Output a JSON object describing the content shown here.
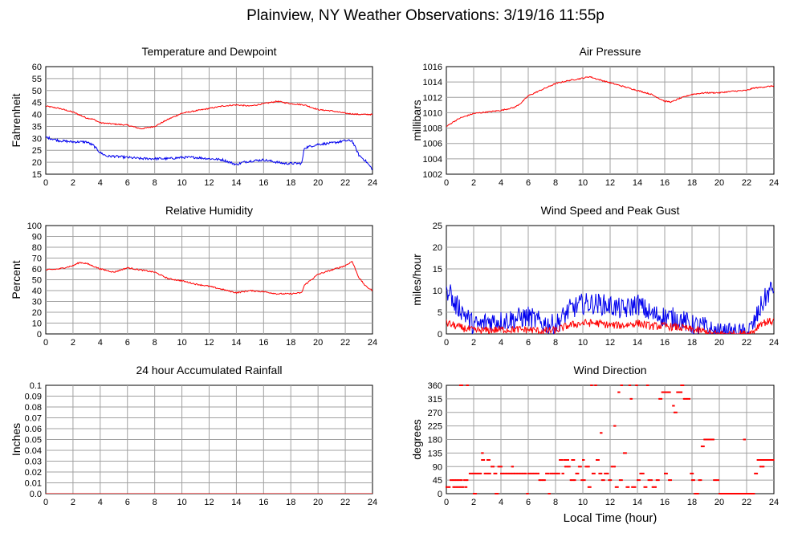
{
  "page": {
    "title": "Plainview, NY Weather Observations: 3/19/16 11:55p",
    "xaxis_label": "Local Time (hour)"
  },
  "colors": {
    "red": "#ff0000",
    "blue": "#0000ee",
    "grid": "#a0a0a0"
  },
  "chart_data": [
    {
      "id": "temp",
      "type": "line",
      "title": "Temperature and Dewpoint",
      "ylabel": "Fahrenheit",
      "xlim": [
        0,
        24
      ],
      "ylim": [
        15,
        60
      ],
      "xticks": [
        0,
        2,
        4,
        6,
        8,
        10,
        12,
        14,
        16,
        18,
        20,
        22,
        24
      ],
      "yticks": [
        15,
        20,
        25,
        30,
        35,
        40,
        45,
        50,
        55,
        60
      ],
      "grid": true,
      "series": [
        {
          "color": "#ff0000",
          "noise": 0.25,
          "x": [
            0,
            1,
            2,
            3,
            3.5,
            4,
            5,
            6,
            7,
            7.5,
            8,
            9,
            10,
            11,
            12,
            13,
            14,
            15,
            16,
            17,
            17.5,
            18,
            19,
            20,
            21,
            22,
            23,
            24
          ],
          "y": [
            43.5,
            42.5,
            41,
            38.5,
            38,
            36.5,
            36,
            35.5,
            34,
            34.5,
            35,
            38,
            40.5,
            41.5,
            42.5,
            43.5,
            44,
            43.5,
            44.5,
            45.5,
            45,
            44.5,
            44,
            42,
            41.5,
            40.5,
            40,
            40
          ]
        },
        {
          "color": "#0000ee",
          "noise": 0.5,
          "x": [
            0,
            1,
            2,
            3,
            3.5,
            4,
            4.5,
            5,
            6,
            7,
            8,
            9,
            10,
            11,
            12,
            13,
            13.5,
            14,
            14.5,
            15,
            16,
            17,
            17.5,
            18,
            18.8,
            19,
            20,
            21,
            22,
            22.5,
            23,
            23.5,
            24
          ],
          "y": [
            30.5,
            29,
            28.5,
            28.5,
            27,
            24,
            22.5,
            22.5,
            22,
            21.5,
            21.5,
            21.5,
            22,
            22,
            21.5,
            21,
            20,
            19,
            20,
            20.5,
            21,
            20,
            19.5,
            19.5,
            19.5,
            26,
            27.5,
            28,
            29,
            29,
            23,
            20.5,
            17
          ]
        }
      ]
    },
    {
      "id": "pressure",
      "type": "line",
      "title": "Air Pressure",
      "ylabel": "millibars",
      "xlim": [
        0,
        24
      ],
      "ylim": [
        1002,
        1016
      ],
      "xticks": [
        0,
        2,
        4,
        6,
        8,
        10,
        12,
        14,
        16,
        18,
        20,
        22,
        24
      ],
      "yticks": [
        1002,
        1004,
        1006,
        1008,
        1010,
        1012,
        1014,
        1016
      ],
      "grid": true,
      "series": [
        {
          "color": "#ff0000",
          "noise": 0.08,
          "x": [
            0,
            0.5,
            1,
            2,
            3,
            4,
            5,
            5.5,
            6,
            7,
            8,
            9,
            10,
            10.5,
            11,
            12,
            13,
            14,
            15,
            16,
            16.5,
            17,
            18,
            19,
            20,
            21,
            22,
            22.5,
            23,
            24
          ],
          "y": [
            1008.2,
            1008.8,
            1009.3,
            1009.9,
            1010.1,
            1010.3,
            1010.7,
            1011.3,
            1012.2,
            1013.0,
            1013.8,
            1014.2,
            1014.5,
            1014.7,
            1014.4,
            1013.9,
            1013.4,
            1012.9,
            1012.4,
            1011.5,
            1011.4,
            1011.8,
            1012.4,
            1012.6,
            1012.6,
            1012.8,
            1012.9,
            1013.2,
            1013.3,
            1013.5
          ]
        }
      ]
    },
    {
      "id": "humidity",
      "type": "line",
      "title": "Relative Humidity",
      "ylabel": "Percent",
      "xlim": [
        0,
        24
      ],
      "ylim": [
        0,
        100
      ],
      "xticks": [
        0,
        2,
        4,
        6,
        8,
        10,
        12,
        14,
        16,
        18,
        20,
        22,
        24
      ],
      "yticks": [
        0,
        10,
        20,
        30,
        40,
        50,
        60,
        70,
        80,
        90,
        100
      ],
      "grid": true,
      "series": [
        {
          "color": "#ff0000",
          "noise": 0.6,
          "x": [
            0,
            1,
            2,
            2.5,
            3,
            4,
            5,
            6,
            7,
            8,
            9,
            10,
            11,
            12,
            13,
            14,
            15,
            16,
            17,
            18,
            18.8,
            19,
            20,
            21,
            22,
            22.5,
            23,
            23.5,
            24
          ],
          "y": [
            59,
            60,
            63,
            66,
            65,
            60,
            57,
            61,
            59,
            57,
            51,
            49,
            46,
            44,
            41,
            38,
            40,
            39,
            37,
            37,
            38,
            45,
            55,
            59,
            63,
            67,
            52,
            44,
            40
          ]
        }
      ]
    },
    {
      "id": "wind",
      "type": "line",
      "title": "Wind Speed and Peak Gust",
      "ylabel": "miles/hour",
      "xlim": [
        0,
        24
      ],
      "ylim": [
        0,
        25
      ],
      "xticks": [
        0,
        2,
        4,
        6,
        8,
        10,
        12,
        14,
        16,
        18,
        20,
        22,
        24
      ],
      "yticks": [
        0,
        5,
        10,
        15,
        20,
        25
      ],
      "grid": true,
      "series": [
        {
          "color": "#0000ee",
          "noise": 2.5,
          "x": [
            0,
            0.2,
            0.5,
            1,
            1.5,
            2,
            2.5,
            3,
            4,
            5,
            6,
            7,
            8,
            9,
            10,
            11,
            12,
            13,
            14,
            15,
            16,
            17,
            18,
            19,
            19.5,
            20,
            21,
            22,
            22.5,
            23,
            23.5,
            24
          ],
          "y": [
            9,
            11,
            7,
            6,
            4,
            2,
            2,
            3,
            3,
            3.5,
            4,
            2.5,
            2,
            5.5,
            7,
            7,
            6.5,
            5.5,
            7,
            4.5,
            4,
            3.5,
            2,
            1.5,
            0.5,
            0,
            0,
            0,
            2,
            6,
            9,
            11
          ]
        },
        {
          "color": "#ff0000",
          "noise": 0.9,
          "x": [
            0,
            0.5,
            1,
            2,
            3,
            4,
            5,
            6,
            7,
            8,
            9,
            10,
            11,
            12,
            13,
            14,
            15,
            16,
            17,
            18,
            19,
            19.5,
            20,
            22,
            22.5,
            23,
            24
          ],
          "y": [
            2.5,
            2,
            1.5,
            0.8,
            0.8,
            1,
            1,
            1,
            0.6,
            0.8,
            2,
            2.5,
            2.5,
            2,
            2,
            2.5,
            1.8,
            1.8,
            1.5,
            1,
            0.5,
            0,
            0,
            0,
            0.5,
            2.5,
            3
          ]
        }
      ]
    },
    {
      "id": "rain",
      "type": "line",
      "title": "24 hour Accumulated Rainfall",
      "ylabel": "Inches",
      "xlim": [
        0,
        24
      ],
      "ylim": [
        0,
        0.1
      ],
      "xticks": [
        0,
        2,
        4,
        6,
        8,
        10,
        12,
        14,
        16,
        18,
        20,
        22,
        24
      ],
      "yticks": [
        0,
        0.01,
        0.02,
        0.03,
        0.04,
        0.05,
        0.06,
        0.07,
        0.08,
        0.09,
        0.1
      ],
      "ytick_labels": [
        "0.0",
        "0.01",
        "0.02",
        "0.03",
        "0.04",
        "0.05",
        "0.06",
        "0.07",
        "0.08",
        "0.09",
        "0.1"
      ],
      "grid": true,
      "series": [
        {
          "color": "#ff0000",
          "noise": 0,
          "x": [
            0,
            24
          ],
          "y": [
            0,
            0
          ]
        }
      ]
    },
    {
      "id": "direction",
      "type": "scatter",
      "title": "Wind Direction",
      "ylabel": "degrees",
      "xlim": [
        0,
        24
      ],
      "ylim": [
        0,
        360
      ],
      "xticks": [
        0,
        2,
        4,
        6,
        8,
        10,
        12,
        14,
        16,
        18,
        20,
        22,
        24
      ],
      "yticks": [
        0,
        45,
        90,
        135,
        180,
        225,
        270,
        315,
        360
      ],
      "grid": true,
      "series": [
        {
          "color": "#ff0000",
          "segments": [
            [
              0.0,
              0.3,
              22
            ],
            [
              0.3,
              1.2,
              45
            ],
            [
              0.5,
              1.3,
              22
            ],
            [
              1.0,
              1.2,
              360
            ],
            [
              1.3,
              1.6,
              45
            ],
            [
              1.4,
              1.5,
              22
            ],
            [
              1.5,
              1.6,
              360
            ],
            [
              1.7,
              2.2,
              67
            ],
            [
              2.0,
              2.2,
              0
            ],
            [
              2.2,
              2.6,
              67
            ],
            [
              2.6,
              2.8,
              112
            ],
            [
              2.6,
              2.7,
              135
            ],
            [
              2.8,
              3.3,
              67
            ],
            [
              3.0,
              3.2,
              112
            ],
            [
              3.3,
              3.5,
              90
            ],
            [
              3.5,
              3.7,
              67
            ],
            [
              3.6,
              3.8,
              0
            ],
            [
              3.8,
              4.1,
              90
            ],
            [
              4.0,
              4.5,
              67
            ],
            [
              4.5,
              5.0,
              67
            ],
            [
              4.8,
              4.9,
              90
            ],
            [
              5.0,
              5.9,
              67
            ],
            [
              5.9,
              6.0,
              0
            ],
            [
              6.0,
              6.8,
              67
            ],
            [
              6.8,
              7.3,
              45
            ],
            [
              7.3,
              7.5,
              67
            ],
            [
              7.5,
              7.6,
              0
            ],
            [
              7.6,
              8.3,
              67
            ],
            [
              8.3,
              8.5,
              112
            ],
            [
              8.5,
              8.6,
              67
            ],
            [
              8.6,
              9.0,
              112
            ],
            [
              8.7,
              9.1,
              90
            ],
            [
              9.1,
              9.5,
              45
            ],
            [
              9.2,
              9.4,
              112
            ],
            [
              9.5,
              9.7,
              67
            ],
            [
              9.7,
              9.9,
              90
            ],
            [
              9.9,
              10.2,
              45
            ],
            [
              10.0,
              10.1,
              112
            ],
            [
              10.2,
              10.5,
              90
            ],
            [
              10.4,
              10.6,
              22
            ],
            [
              10.6,
              10.7,
              360
            ],
            [
              10.7,
              10.9,
              67
            ],
            [
              10.9,
              11.0,
              360
            ],
            [
              11.0,
              11.2,
              112
            ],
            [
              11.2,
              11.4,
              67
            ],
            [
              11.3,
              11.4,
              202
            ],
            [
              11.4,
              11.6,
              45
            ],
            [
              11.6,
              11.9,
              67
            ],
            [
              11.9,
              12.1,
              45
            ],
            [
              12.1,
              12.4,
              90
            ],
            [
              12.3,
              12.4,
              225
            ],
            [
              12.4,
              12.6,
              22
            ],
            [
              12.6,
              12.7,
              337
            ],
            [
              12.7,
              12.9,
              45
            ],
            [
              12.8,
              12.9,
              360
            ],
            [
              13.0,
              13.2,
              135
            ],
            [
              13.2,
              13.4,
              22
            ],
            [
              13.4,
              13.5,
              360
            ],
            [
              13.5,
              13.6,
              315
            ],
            [
              13.6,
              13.9,
              22
            ],
            [
              13.9,
              14.0,
              360
            ],
            [
              14.0,
              14.2,
              45
            ],
            [
              14.2,
              14.5,
              67
            ],
            [
              14.5,
              14.7,
              22
            ],
            [
              14.7,
              14.8,
              360
            ],
            [
              14.8,
              15.1,
              45
            ],
            [
              15.1,
              15.4,
              22
            ],
            [
              15.4,
              15.6,
              45
            ],
            [
              15.6,
              15.8,
              315
            ],
            [
              15.8,
              16.4,
              337
            ],
            [
              16.0,
              16.2,
              67
            ],
            [
              16.3,
              16.5,
              45
            ],
            [
              16.6,
              16.7,
              292
            ],
            [
              16.7,
              16.9,
              270
            ],
            [
              16.9,
              17.3,
              337
            ],
            [
              17.2,
              17.4,
              360
            ],
            [
              17.4,
              17.9,
              315
            ],
            [
              17.9,
              18.1,
              67
            ],
            [
              18.0,
              18.2,
              45
            ],
            [
              18.2,
              18.5,
              0
            ],
            [
              18.5,
              18.7,
              45
            ],
            [
              18.7,
              18.9,
              157
            ],
            [
              18.9,
              19.6,
              180
            ],
            [
              19.6,
              20.0,
              45
            ],
            [
              20.0,
              22.6,
              0
            ],
            [
              21.8,
              21.9,
              180
            ],
            [
              22.6,
              22.8,
              67
            ],
            [
              22.8,
              23.3,
              112
            ],
            [
              23.0,
              23.3,
              90
            ],
            [
              23.3,
              24.0,
              112
            ]
          ]
        }
      ]
    }
  ]
}
